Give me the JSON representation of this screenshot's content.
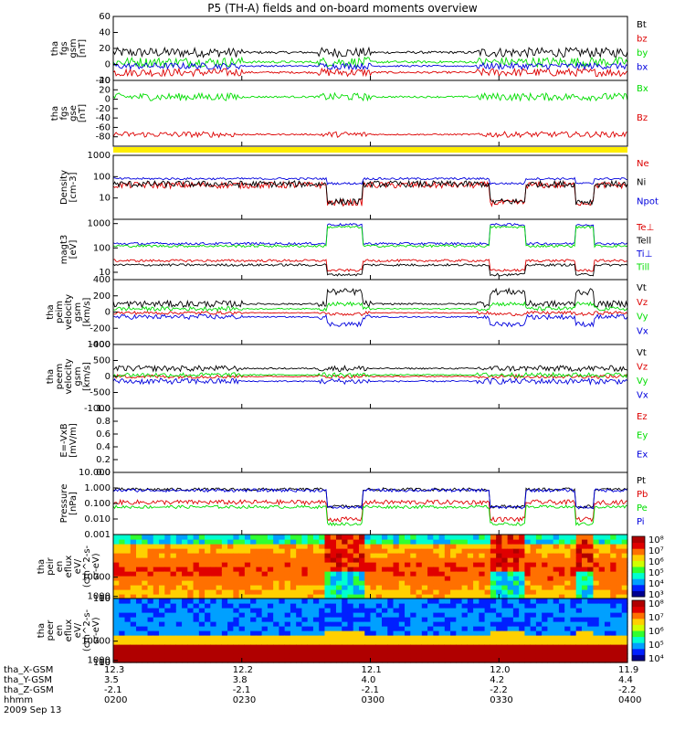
{
  "title": "P5 (TH-A) fields and on-board moments overview",
  "colors": {
    "black": "#000000",
    "red": "#dd0000",
    "green": "#00dd00",
    "blue": "#0000dd",
    "yellow": "#ffee00"
  },
  "chart_data": [
    {
      "id": "fgs_gsm",
      "type": "line",
      "ylabel": [
        "tha",
        "fgs",
        "gsm",
        "[nT]"
      ],
      "ylim": [
        -20,
        60
      ],
      "ticks": [
        "60",
        "40",
        "20",
        "0",
        "-20"
      ],
      "tick_values": [
        60,
        40,
        20,
        0,
        -20
      ],
      "series": [
        {
          "name": "Bt",
          "color": "#000000",
          "base": 15,
          "amp": 6
        },
        {
          "name": "bz",
          "color": "#dd0000",
          "base": -10,
          "amp": 5
        },
        {
          "name": "by",
          "color": "#00dd00",
          "base": 3,
          "amp": 6
        },
        {
          "name": "bx",
          "color": "#0000dd",
          "base": -2,
          "amp": 4
        }
      ]
    },
    {
      "id": "fgs_gse",
      "type": "line",
      "ylabel": [
        "tha",
        "fgs",
        "gse",
        "[nT]"
      ],
      "ylim": [
        -100,
        40
      ],
      "ticks": [
        "40",
        "20",
        "0",
        "-20",
        "-40",
        "-60",
        "-80"
      ],
      "tick_values": [
        40,
        20,
        0,
        -20,
        -40,
        -60,
        -80
      ],
      "series": [
        {
          "name": "Bx",
          "color": "#00dd00",
          "base": 5,
          "amp": 8
        },
        {
          "name": "Bz",
          "color": "#dd0000",
          "base": -75,
          "amp": 6
        }
      ]
    },
    {
      "id": "density",
      "type": "line",
      "log": true,
      "ylabel": [
        "Density",
        "[cm-3]"
      ],
      "ylim": [
        1,
        1000
      ],
      "ticks": [
        "1000",
        "100",
        "10"
      ],
      "tick_values": [
        1000,
        100,
        10
      ],
      "series": [
        {
          "name": "Ne",
          "color": "#dd0000",
          "base": 40,
          "amp": 0.15
        },
        {
          "name": "Ni",
          "color": "#000000",
          "base": 45,
          "amp": 0.15
        },
        {
          "name": "Npot",
          "color": "#0000dd",
          "base": 80,
          "amp": 0.05
        }
      ]
    },
    {
      "id": "magt3",
      "type": "line",
      "log": true,
      "ylabel": [
        "magt3",
        "[eV]"
      ],
      "ylim": [
        5,
        1500
      ],
      "ticks": [
        "1000",
        "100",
        "10"
      ],
      "tick_values": [
        1000,
        100,
        10
      ],
      "series": [
        {
          "name": "Te⊥",
          "color": "#dd0000",
          "base": 30,
          "amp": 0.05
        },
        {
          "name": "Tell",
          "color": "#000000",
          "base": 20,
          "amp": 0.05
        },
        {
          "name": "Ti⊥",
          "color": "#0000dd",
          "base": 150,
          "amp": 0.05
        },
        {
          "name": "Till",
          "color": "#00dd00",
          "base": 120,
          "amp": 0.05
        }
      ]
    },
    {
      "id": "peim_velocity",
      "type": "line",
      "ylabel": [
        "tha",
        "peim",
        "velocity",
        "gsm",
        "[km/s]"
      ],
      "ylim": [
        -400,
        400
      ],
      "ticks": [
        "400",
        "200",
        "0",
        "-200",
        "-400"
      ],
      "tick_values": [
        400,
        200,
        0,
        -200,
        -400
      ],
      "series": [
        {
          "name": "Vt",
          "color": "#000000",
          "base": 100,
          "amp": 40
        },
        {
          "name": "Vz",
          "color": "#dd0000",
          "base": -10,
          "amp": 20
        },
        {
          "name": "Vy",
          "color": "#00dd00",
          "base": 40,
          "amp": 25
        },
        {
          "name": "Vx",
          "color": "#0000dd",
          "base": -60,
          "amp": 30
        }
      ]
    },
    {
      "id": "peem_velocity",
      "type": "line",
      "ylabel": [
        "tha",
        "peem",
        "velocity",
        "gsm",
        "[km/s]"
      ],
      "ylim": [
        -1000,
        1000
      ],
      "ticks": [
        "1000",
        "500",
        "0",
        "-500",
        "-1000"
      ],
      "tick_values": [
        1000,
        500,
        0,
        -500,
        -1000
      ],
      "series": [
        {
          "name": "Vt",
          "color": "#000000",
          "base": 250,
          "amp": 90
        },
        {
          "name": "Vz",
          "color": "#dd0000",
          "base": 0,
          "amp": 60
        },
        {
          "name": "Vy",
          "color": "#00dd00",
          "base": 50,
          "amp": 70
        },
        {
          "name": "Vx",
          "color": "#0000dd",
          "base": -150,
          "amp": 90
        }
      ]
    },
    {
      "id": "e_vxb",
      "type": "line",
      "ylabel": [
        "E=-VxB",
        "[mV/m]"
      ],
      "ylim": [
        0,
        1.0
      ],
      "ticks": [
        "1.0",
        "0.8",
        "0.6",
        "0.4",
        "0.2",
        "0.0"
      ],
      "tick_values": [
        1.0,
        0.8,
        0.6,
        0.4,
        0.2,
        0.0
      ],
      "series": [
        {
          "name": "Ez",
          "color": "#dd0000"
        },
        {
          "name": "Ey",
          "color": "#00dd00"
        },
        {
          "name": "Ex",
          "color": "#0000dd"
        }
      ]
    },
    {
      "id": "pressure",
      "type": "line",
      "log": true,
      "ylabel": [
        "Pressure",
        "[nPa]"
      ],
      "ylim": [
        0.001,
        10
      ],
      "ticks": [
        "10.000",
        "1.000",
        "0.100",
        "0.010",
        "0.001"
      ],
      "tick_values": [
        10,
        1,
        0.1,
        0.01,
        0.001
      ],
      "series": [
        {
          "name": "Pt",
          "color": "#000000",
          "base": 0.8,
          "amp": 0.1
        },
        {
          "name": "Pb",
          "color": "#dd0000",
          "base": 0.12,
          "amp": 0.15
        },
        {
          "name": "Pe",
          "color": "#00dd00",
          "base": 0.06,
          "amp": 0.1
        },
        {
          "name": "Pi",
          "color": "#0000dd",
          "base": 0.7,
          "amp": 0.1
        }
      ]
    },
    {
      "id": "peir_spectrogram",
      "type": "heatmap",
      "ylabel": [
        "tha",
        "peir",
        "en",
        "eflux",
        "eV/",
        "(cm^2-s-",
        "sr-eV)"
      ],
      "ylim": [
        5,
        30000
      ],
      "ticks": [
        "10000",
        "1000",
        "100",
        "10"
      ],
      "tick_values": [
        10000,
        1000,
        100,
        10
      ],
      "colorbar_ticks": [
        "10⁸",
        "10⁷",
        "10⁶",
        "10⁵",
        "10⁴",
        "10³"
      ]
    },
    {
      "id": "peer_spectrogram",
      "type": "heatmap",
      "ylabel": [
        "tha",
        "peer",
        "en",
        "eflux",
        "eV/",
        "(cm^2-s-",
        "sr-eV)"
      ],
      "ylim": [
        5,
        30000
      ],
      "ticks": [
        "10000",
        "1000",
        "100",
        "10"
      ],
      "tick_values": [
        10000,
        1000,
        100,
        10
      ],
      "colorbar_ticks": [
        "10⁸",
        "10⁷",
        "10⁶",
        "10⁵",
        "10⁴"
      ]
    }
  ],
  "time_axis": {
    "xlim_min": [
      0,
      120
    ],
    "ticks_min": [
      0,
      30,
      60,
      90,
      120
    ],
    "labels": [
      {
        "row": "tha_X-GSM",
        "values": [
          "12.3",
          "12.2",
          "12.1",
          "12.0",
          "11.9"
        ]
      },
      {
        "row": "tha_Y-GSM",
        "values": [
          "3.5",
          "3.8",
          "4.0",
          "4.2",
          "4.4"
        ]
      },
      {
        "row": "tha_Z-GSM",
        "values": [
          "-2.1",
          "-2.1",
          "-2.1",
          "-2.2",
          "-2.2"
        ]
      },
      {
        "row": "hhmm",
        "values": [
          "0200",
          "0230",
          "0300",
          "0330",
          "0400"
        ]
      }
    ],
    "date": "2009 Sep 13"
  }
}
